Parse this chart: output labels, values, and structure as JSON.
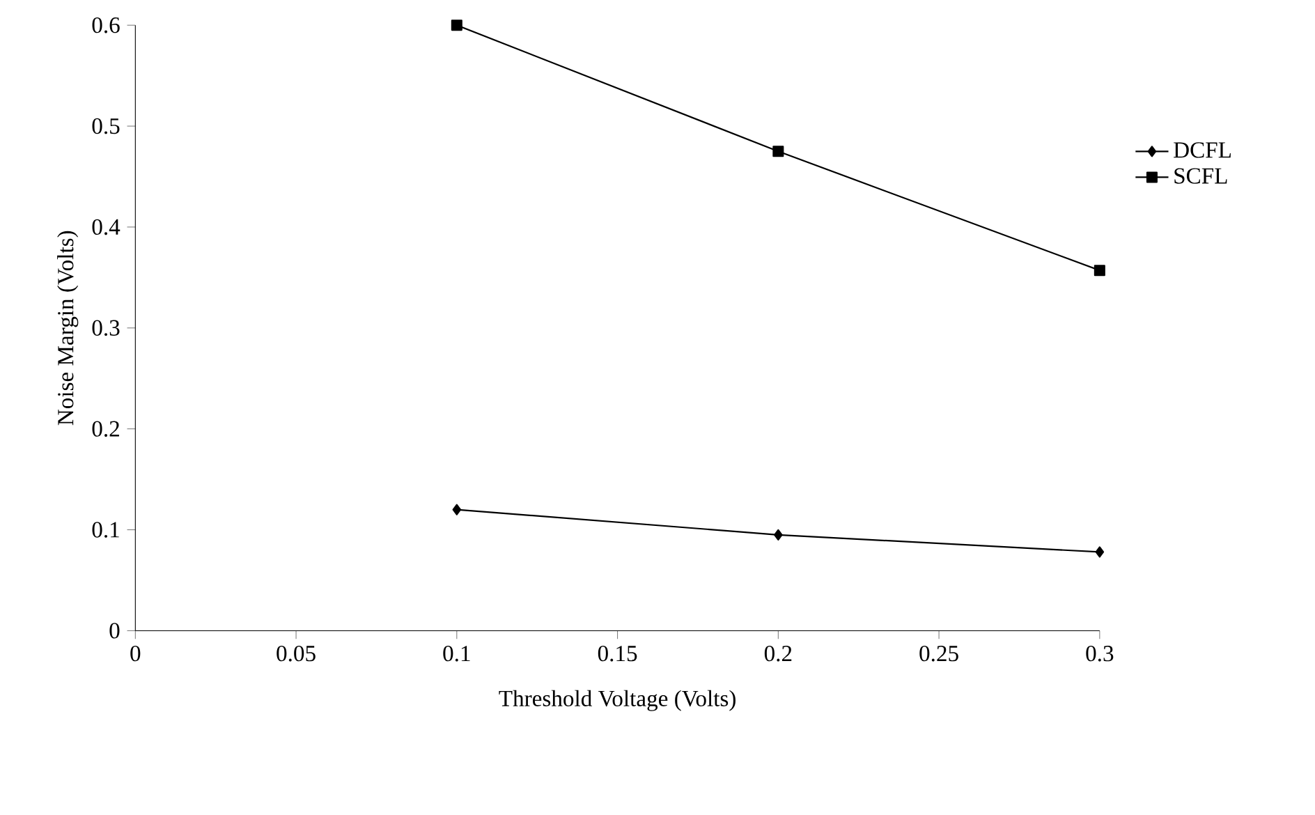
{
  "chart_data": {
    "type": "line",
    "xlabel": "Threshold Voltage (Volts)",
    "ylabel": "Noise Margin (Volts)",
    "x": [
      0.1,
      0.2,
      0.3
    ],
    "series": [
      {
        "name": "DCFL",
        "color": "#000000",
        "marker": "diamond",
        "values": [
          0.12,
          0.095,
          0.078
        ]
      },
      {
        "name": "SCFL",
        "color": "#000000",
        "marker": "square",
        "values": [
          0.6,
          0.475,
          0.357
        ]
      }
    ],
    "xlim": [
      0,
      0.3
    ],
    "ylim": [
      0,
      0.6
    ],
    "xticks": [
      0,
      0.05,
      0.1,
      0.15,
      0.2,
      0.25,
      0.3
    ],
    "yticks": [
      0,
      0.1,
      0.2,
      0.3,
      0.4,
      0.5,
      0.6
    ],
    "grid": false,
    "legend": "right",
    "line_style": "solid"
  }
}
